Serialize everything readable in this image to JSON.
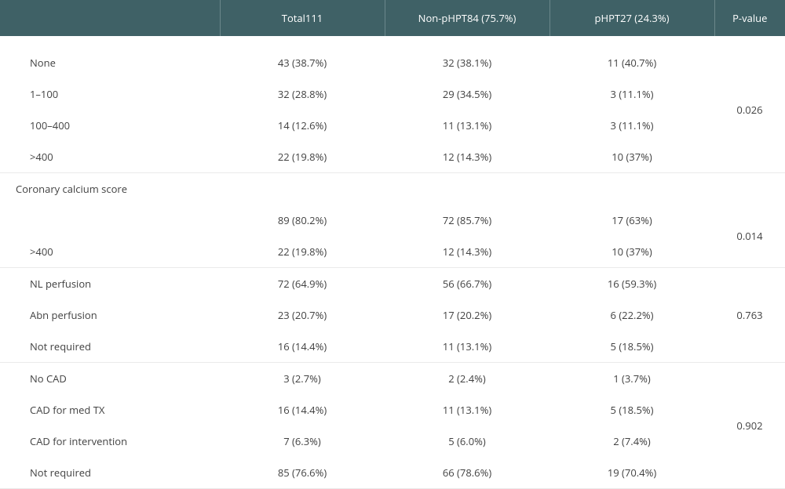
{
  "header": {
    "blank": "",
    "total": "Total111",
    "nonphpt": "Non-pHPT84 (75.7%)",
    "phpt": "pHPT27 (24.3%)",
    "pvalue": "P-value"
  },
  "groups": [
    {
      "section": null,
      "pvalue": "0.026",
      "rows": [
        {
          "label": "None",
          "total": "43 (38.7%)",
          "nonphpt": "32 (38.1%)",
          "phpt": "11 (40.7%)"
        },
        {
          "label": "1–100",
          "total": "32 (28.8%)",
          "nonphpt": "29 (34.5%)",
          "phpt": "3 (11.1%)"
        },
        {
          "label": "100–400",
          "total": "14 (12.6%)",
          "nonphpt": "11 (13.1%)",
          "phpt": "3 (11.1%)"
        },
        {
          "label": ">400",
          "total": "22 (19.8%)",
          "nonphpt": "12 (14.3%)",
          "phpt": "10 (37%)"
        }
      ]
    },
    {
      "section": "Coronary calcium score",
      "pvalue": "0.014",
      "rows": [
        {
          "label": "",
          "total": "89 (80.2%)",
          "nonphpt": "72 (85.7%)",
          "phpt": "17 (63%)"
        },
        {
          "label": ">400",
          "total": "22 (19.8%)",
          "nonphpt": "12 (14.3%)",
          "phpt": "10 (37%)"
        }
      ]
    },
    {
      "section": null,
      "pvalue": "0.763",
      "rows": [
        {
          "label": "NL perfusion",
          "total": "72 (64.9%)",
          "nonphpt": "56 (66.7%)",
          "phpt": "16 (59.3%)"
        },
        {
          "label": "Abn perfusion",
          "total": "23 (20.7%)",
          "nonphpt": "17 (20.2%)",
          "phpt": "6 (22.2%)"
        },
        {
          "label": "Not required",
          "total": "16 (14.4%)",
          "nonphpt": "11 (13.1%)",
          "phpt": "5 (18.5%)"
        }
      ]
    },
    {
      "section": null,
      "pvalue": "0.902",
      "rows": [
        {
          "label": "No CAD",
          "total": "3 (2.7%)",
          "nonphpt": "2 (2.4%)",
          "phpt": "1 (3.7%)"
        },
        {
          "label": "CAD for med TX",
          "total": "16 (14.4%)",
          "nonphpt": "11 (13.1%)",
          "phpt": "5 (18.5%)"
        },
        {
          "label": "CAD for intervention",
          "total": "7 (6.3%)",
          "nonphpt": "5 (6.0%)",
          "phpt": "2 (7.4%)"
        },
        {
          "label": "Not required",
          "total": "85 (76.6%)",
          "nonphpt": "66 (78.6%)",
          "phpt": "19 (70.4%)"
        }
      ]
    }
  ]
}
